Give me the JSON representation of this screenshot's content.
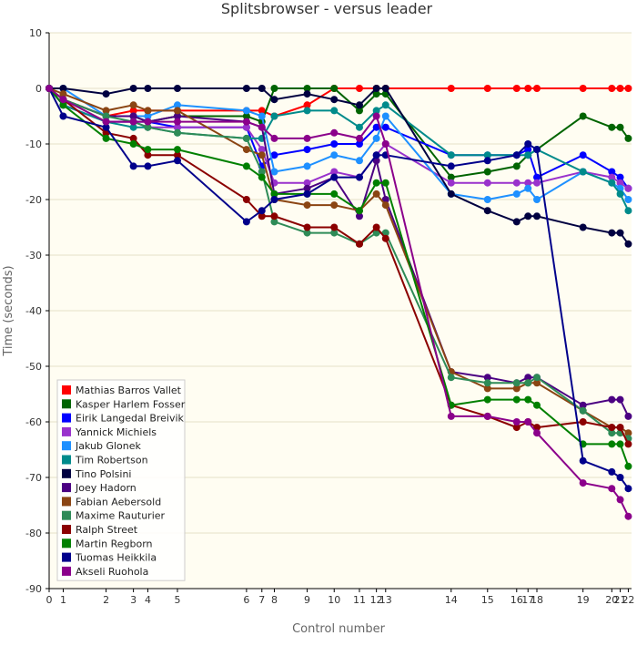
{
  "chart_data": {
    "type": "line",
    "title": "Splitsbrowser - versus leader",
    "xlabel": "Control number",
    "ylabel": "Time (seconds)",
    "xlim": [
      0,
      22.5
    ],
    "ylim": [
      -90,
      10
    ],
    "yticks": [
      10,
      0,
      -10,
      -20,
      -30,
      -40,
      -50,
      -60,
      -70,
      -80,
      -90
    ],
    "xticks": [
      0,
      1,
      2,
      3,
      4,
      5,
      6,
      7,
      8,
      9,
      10,
      11,
      12,
      13,
      14,
      15,
      16,
      17,
      18,
      19,
      20,
      21,
      22
    ],
    "xtick_labels": [
      "0",
      "1",
      "2",
      "3",
      "4",
      "5",
      "6",
      "7",
      "8",
      "9",
      "10",
      "11",
      "12",
      "13",
      "14",
      "15",
      "16",
      "17",
      "18",
      "19",
      "20",
      "21",
      "22"
    ],
    "x_positions": [
      0,
      0.87,
      3.52,
      5.21,
      6.1,
      7.93,
      12.2,
      13.15,
      13.92,
      15.95,
      17.62,
      19.18,
      20.23,
      20.8,
      24.85,
      27.1,
      28.9,
      29.6,
      30.15,
      33.0,
      34.78,
      35.3,
      35.8
    ],
    "x_axis_max_position": 36.0,
    "plot_background": "#fffdf2",
    "grid": true,
    "legend_position": "bottom-left",
    "series": [
      {
        "name": "Mathias Barros Vallet",
        "color": "#ff0000",
        "values": [
          0,
          -2,
          -5,
          -4,
          -4,
          -4,
          -4,
          -4,
          -5,
          -3,
          0,
          0,
          0,
          0,
          0,
          0,
          0,
          0,
          0,
          0,
          0,
          0,
          0
        ]
      },
      {
        "name": "Kasper Harlem Fosser",
        "color": "#006400",
        "values": [
          0,
          -2,
          -5,
          -5,
          -6,
          -5,
          -5,
          -6,
          0,
          0,
          0,
          -4,
          -1,
          -1,
          -16,
          -15,
          -14,
          -12,
          -11,
          -5,
          -7,
          -7,
          -9
        ]
      },
      {
        "name": "Eirik Langedal Breivik",
        "color": "#0000ff",
        "values": [
          0,
          -3,
          -6,
          -6,
          -6,
          -7,
          -7,
          -14,
          -12,
          -11,
          -10,
          -10,
          -7,
          -7,
          -12,
          -12,
          -12,
          -11,
          -16,
          -12,
          -15,
          -16,
          -18
        ]
      },
      {
        "name": "Yannick Michiels",
        "color": "#9932cc",
        "values": [
          0,
          -3,
          -6,
          -6,
          -7,
          -7,
          -7,
          -11,
          -17,
          -17,
          -15,
          -16,
          -12,
          -10,
          -17,
          -17,
          -17,
          -17,
          -17,
          -15,
          -16,
          -17,
          -18
        ]
      },
      {
        "name": "Jakub Glonek",
        "color": "#1e90ff",
        "values": [
          0,
          0,
          -5,
          -5,
          -5,
          -3,
          -4,
          -5,
          -15,
          -14,
          -12,
          -13,
          -9,
          -5,
          -19,
          -20,
          -19,
          -18,
          -20,
          -15,
          -17,
          -18,
          -20
        ]
      },
      {
        "name": "Tim Robertson",
        "color": "#008b8b",
        "values": [
          0,
          -3,
          -6,
          -7,
          -7,
          -8,
          -9,
          -9,
          -5,
          -4,
          -4,
          -7,
          -4,
          -3,
          -12,
          -12,
          -12,
          -12,
          -11,
          -15,
          -17,
          -19,
          -22
        ]
      },
      {
        "name": "Tino Polsini",
        "color": "#000040",
        "values": [
          0,
          0,
          -1,
          0,
          0,
          0,
          0,
          0,
          -2,
          -1,
          -2,
          -3,
          0,
          0,
          -19,
          -22,
          -24,
          -23,
          -23,
          -25,
          -26,
          -26,
          -28
        ]
      },
      {
        "name": "Joey Hadorn",
        "color": "#4b0082",
        "values": [
          0,
          -2,
          -5,
          -5,
          -6,
          -5,
          -6,
          -7,
          -19,
          -18,
          -16,
          -23,
          -13,
          -20,
          -51,
          -52,
          -53,
          -52,
          -52,
          -57,
          -56,
          -56,
          -59
        ]
      },
      {
        "name": "Fabian Aebersold",
        "color": "#8b4513",
        "values": [
          0,
          -1,
          -4,
          -3,
          -4,
          -4,
          -11,
          -12,
          -20,
          -21,
          -21,
          -22,
          -19,
          -21,
          -51,
          -54,
          -54,
          -53,
          -53,
          -58,
          -61,
          -61,
          -62
        ]
      },
      {
        "name": "Maxime Rauturier",
        "color": "#2e8b57",
        "values": [
          0,
          -2,
          -5,
          -6,
          -7,
          -8,
          -9,
          -15,
          -24,
          -26,
          -26,
          -28,
          -26,
          -26,
          -52,
          -53,
          -53,
          -53,
          -52,
          -58,
          -62,
          -62,
          -63
        ]
      },
      {
        "name": "Ralph Street",
        "color": "#8b0000",
        "values": [
          0,
          -2,
          -8,
          -9,
          -12,
          -12,
          -20,
          -23,
          -23,
          -25,
          -25,
          -28,
          -25,
          -27,
          -57,
          -59,
          -61,
          -60,
          -61,
          -60,
          -61,
          -61,
          -64
        ]
      },
      {
        "name": "Martin Regborn",
        "color": "#008000",
        "values": [
          0,
          -3,
          -9,
          -10,
          -11,
          -11,
          -14,
          -16,
          -19,
          -19,
          -19,
          -22,
          -17,
          -17,
          -57,
          -56,
          -56,
          -56,
          -57,
          -64,
          -64,
          -64,
          -68
        ]
      },
      {
        "name": "Tuomas Heikkila",
        "color": "#00008b",
        "values": [
          0,
          -5,
          -7,
          -14,
          -14,
          -13,
          -24,
          -22,
          -20,
          -19,
          -16,
          -16,
          -12,
          -12,
          -14,
          -13,
          -12,
          -10,
          -11,
          -67,
          -69,
          -70,
          -72
        ]
      },
      {
        "name": "Akseli Ruohola",
        "color": "#8b008b",
        "values": [
          0,
          -2,
          -6,
          -6,
          -6,
          -6,
          -6,
          -7,
          -9,
          -9,
          -8,
          -9,
          -5,
          -10,
          -59,
          -59,
          -60,
          -60,
          -62,
          -71,
          -72,
          -74,
          -77
        ]
      }
    ]
  }
}
